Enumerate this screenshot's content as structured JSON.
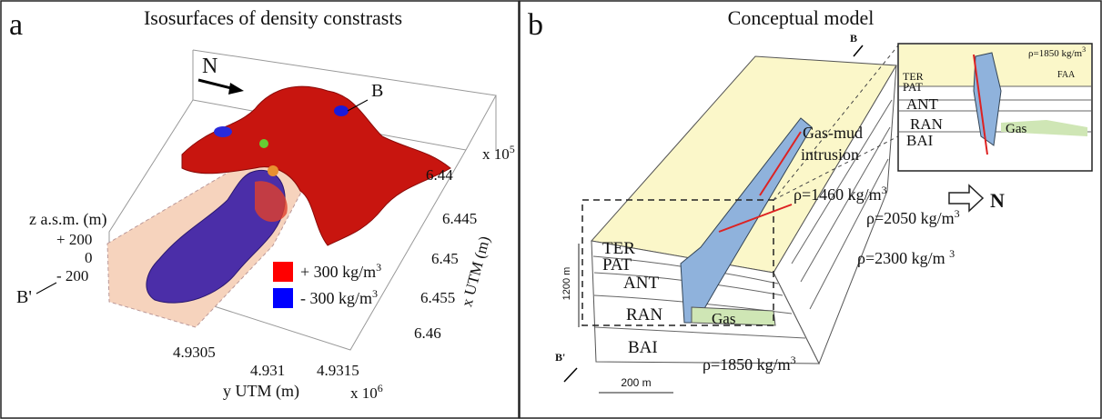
{
  "panel_a": {
    "letter": "a",
    "title": "Isosurfaces of density constrasts",
    "north": "N",
    "marker_b": "B",
    "marker_b_prime": "B'",
    "x_axis": {
      "label": "x UTM (m)",
      "multiplier": {
        "base": "x 10",
        "exp": "5"
      },
      "ticks": [
        "6.44",
        "6.445",
        "6.45",
        "6.455",
        "6.46"
      ]
    },
    "y_axis": {
      "label": "y UTM (m)",
      "multiplier": {
        "base": "x 10",
        "exp": "6"
      },
      "ticks": [
        "4.9305",
        "4.931",
        "4.9315"
      ]
    },
    "z_axis": {
      "label": "z a.s.m. (m)",
      "ticks": [
        "+ 200",
        "0",
        "- 200"
      ]
    },
    "legend": [
      {
        "base": "+ 300 kg/m",
        "exp": "3"
      },
      {
        "base": "- 300 kg/m",
        "exp": "3"
      }
    ]
  },
  "panel_b": {
    "letter": "b",
    "title": "Conceptual model",
    "marker_b": "B",
    "marker_b_prime": "B'",
    "inset": {
      "density": {
        "base": "ρ=1850 kg/m",
        "exp": "3"
      },
      "unit_label": "FAA",
      "layers": [
        "TER",
        "PAT",
        "ANT",
        "RAN",
        "BAI"
      ],
      "gas": "Gas"
    },
    "intrusion_label": [
      "Gas-mud",
      "intrusion"
    ],
    "densities": [
      {
        "base": "ρ=1460 kg/m",
        "exp": "3"
      },
      {
        "base": "ρ=2050 kg/m",
        "exp": "3"
      },
      {
        "base": "ρ=2300 kg/m ",
        "exp": "3"
      },
      {
        "base": "ρ=1850 kg/m",
        "exp": "3"
      }
    ],
    "north": "N",
    "layers": [
      "TER",
      "PAT",
      "ANT",
      "RAN",
      "BAI"
    ],
    "gas": "Gas",
    "height_scale": "1200 m",
    "width_scale": "200 m"
  }
}
